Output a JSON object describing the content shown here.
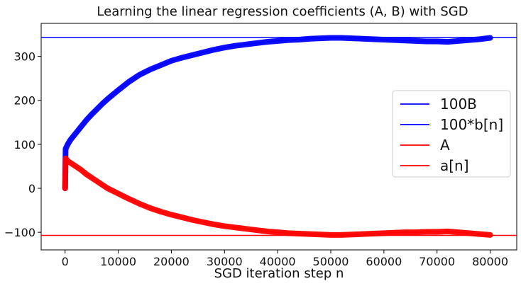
{
  "chart_data": {
    "type": "line",
    "title": "Learning the linear regression coefficients (A, B) with SGD",
    "xlabel": "SGD iteration step n",
    "ylabel": "",
    "xlim": [
      -4500,
      85000
    ],
    "ylim": [
      -140,
      375
    ],
    "grid": false,
    "legend_position": "center-right",
    "x_ticks": [
      0,
      10000,
      20000,
      30000,
      40000,
      50000,
      60000,
      70000,
      80000
    ],
    "y_ticks": [
      -100,
      0,
      100,
      200,
      300
    ],
    "colors": {
      "blue": "#0000ff",
      "red": "#ff0000",
      "axis": "#000000"
    },
    "series": [
      {
        "name": "100B",
        "kind": "hline",
        "y": 343,
        "color": "#0000ff"
      },
      {
        "name": "100*b[n]",
        "kind": "line",
        "color": "#0000ff",
        "x": [
          0,
          100,
          500,
          1000,
          2000,
          3000,
          4000,
          5000,
          6000,
          7000,
          8000,
          10000,
          12000,
          14000,
          16000,
          18000,
          20000,
          22000,
          24000,
          26000,
          28000,
          30000,
          32000,
          34000,
          36000,
          38000,
          40000,
          42000,
          44000,
          46000,
          48000,
          50000,
          52000,
          54000,
          56000,
          58000,
          60000,
          62000,
          64000,
          66000,
          68000,
          70000,
          72000,
          74000,
          76000,
          78000,
          80000
        ],
        "y": [
          0,
          90,
          100,
          110,
          125,
          140,
          155,
          168,
          180,
          192,
          203,
          223,
          242,
          258,
          270,
          280,
          290,
          297,
          303,
          309,
          315,
          320,
          324,
          327,
          330,
          333,
          335,
          337,
          338,
          340,
          341,
          342,
          342,
          341,
          340,
          339,
          338,
          337,
          336,
          335,
          334,
          334,
          333,
          335,
          337,
          339,
          342
        ]
      },
      {
        "name": "A",
        "kind": "hline",
        "y": -107,
        "color": "#ff0000"
      },
      {
        "name": "a[n]",
        "kind": "line",
        "color": "#ff0000",
        "x": [
          0,
          100,
          500,
          1000,
          2000,
          3000,
          4000,
          5000,
          6000,
          7000,
          8000,
          10000,
          12000,
          14000,
          16000,
          18000,
          20000,
          22000,
          24000,
          26000,
          28000,
          30000,
          32000,
          34000,
          36000,
          38000,
          40000,
          42000,
          44000,
          46000,
          48000,
          50000,
          52000,
          54000,
          56000,
          58000,
          60000,
          62000,
          64000,
          66000,
          68000,
          70000,
          72000,
          74000,
          76000,
          78000,
          80000
        ],
        "y": [
          0,
          68,
          62,
          58,
          50,
          42,
          32,
          24,
          16,
          8,
          0,
          -12,
          -24,
          -35,
          -45,
          -53,
          -60,
          -66,
          -72,
          -77,
          -82,
          -86,
          -89,
          -92,
          -95,
          -98,
          -100,
          -102,
          -103,
          -104,
          -105,
          -106,
          -106,
          -105,
          -104,
          -103,
          -102,
          -101,
          -100,
          -100,
          -99,
          -99,
          -98,
          -100,
          -102,
          -104,
          -106
        ]
      }
    ]
  }
}
